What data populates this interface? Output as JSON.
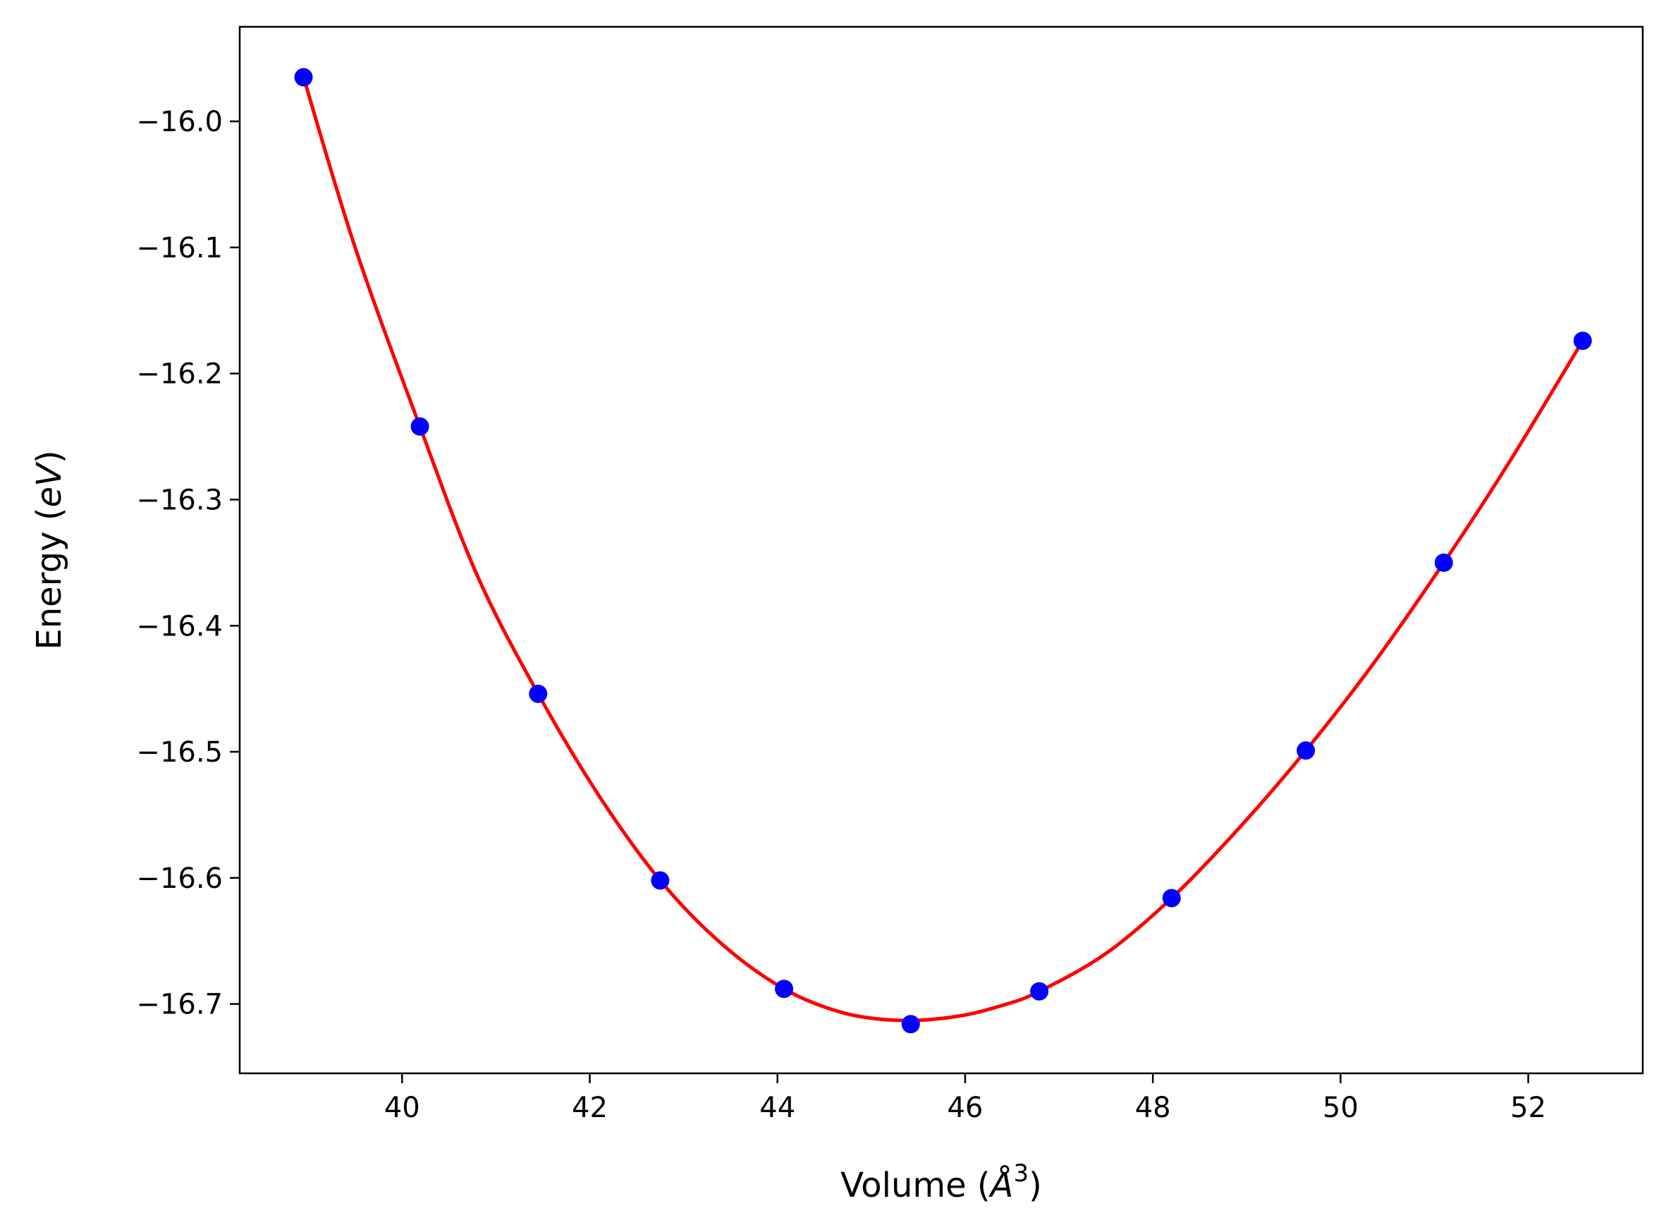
{
  "chart_data": {
    "type": "scatter",
    "xlabel": {
      "prefix": "Volume (",
      "symbol": "Å",
      "exponent": "3",
      "suffix": ")"
    },
    "ylabel": {
      "prefix": "Energy (",
      "symbol": "eV",
      "suffix": ")"
    },
    "xlim": [
      38.27,
      53.22
    ],
    "ylim": [
      -16.755,
      -15.925
    ],
    "x_ticks": [
      40,
      42,
      44,
      46,
      48,
      50,
      52
    ],
    "x_tick_labels": [
      "40",
      "42",
      "44",
      "46",
      "48",
      "50",
      "52"
    ],
    "y_ticks": [
      -16.0,
      -16.1,
      -16.2,
      -16.3,
      -16.4,
      -16.5,
      -16.6,
      -16.7
    ],
    "y_tick_labels": [
      "−16.0",
      "−16.1",
      "−16.2",
      "−16.3",
      "−16.4",
      "−16.5",
      "−16.6",
      "−16.7"
    ],
    "grid": false,
    "series": [
      {
        "kind": "points",
        "color": "#0000ff",
        "x": [
          38.95,
          40.19,
          41.45,
          42.75,
          44.07,
          45.42,
          46.79,
          48.2,
          49.63,
          51.1,
          52.58
        ],
        "y": [
          -15.965,
          -16.242,
          -16.454,
          -16.602,
          -16.688,
          -16.716,
          -16.69,
          -16.616,
          -16.499,
          -16.35,
          -16.174
        ]
      },
      {
        "kind": "fit-curve",
        "color": "#ff0000",
        "x": [
          38.95,
          39.5,
          40.19,
          40.8,
          41.45,
          42.1,
          42.75,
          43.4,
          44.07,
          44.7,
          45.3,
          45.9,
          46.4,
          46.79,
          47.5,
          48.2,
          48.9,
          49.63,
          50.35,
          51.1,
          51.8,
          52.58
        ],
        "y": [
          -15.965,
          -16.1,
          -16.242,
          -16.36,
          -16.454,
          -16.535,
          -16.602,
          -16.652,
          -16.688,
          -16.707,
          -16.713,
          -16.71,
          -16.701,
          -16.69,
          -16.66,
          -16.616,
          -16.562,
          -16.499,
          -16.43,
          -16.35,
          -16.27,
          -16.174
        ]
      }
    ]
  }
}
